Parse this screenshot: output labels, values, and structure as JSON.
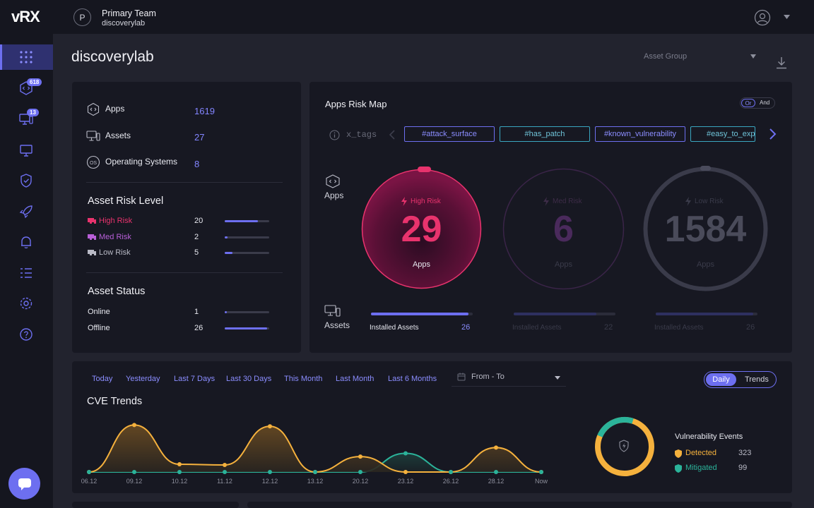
{
  "brand": {
    "logo": "vRX"
  },
  "sidebar": {
    "items": [
      {
        "name": "dashboard",
        "icon": "grid-icon"
      },
      {
        "name": "apps",
        "icon": "apps-icon",
        "badge": "618"
      },
      {
        "name": "assets",
        "icon": "assets-icon",
        "badge": "13"
      },
      {
        "name": "monitor",
        "icon": "monitor-icon"
      },
      {
        "name": "shield",
        "icon": "shield-icon"
      },
      {
        "name": "rocket",
        "icon": "rocket-icon"
      },
      {
        "name": "alerts",
        "icon": "bell-icon"
      },
      {
        "name": "list",
        "icon": "list-icon"
      },
      {
        "name": "settings",
        "icon": "gear-icon"
      },
      {
        "name": "help",
        "icon": "help-icon"
      }
    ]
  },
  "topbar": {
    "avatar_letter": "P",
    "team": "Primary Team",
    "subtitle": "discoverylab"
  },
  "page": {
    "title": "discoverylab",
    "asset_group_placeholder": "Asset Group"
  },
  "summary": {
    "rows": [
      {
        "label": "Apps",
        "value": "1619"
      },
      {
        "label": "Assets",
        "value": "27"
      },
      {
        "label": "Operating Systems",
        "value": "8"
      }
    ]
  },
  "asset_risk": {
    "title": "Asset Risk Level",
    "rows": [
      {
        "label": "High Risk",
        "value": "20",
        "fraction": 0.74,
        "color": "#e8336d"
      },
      {
        "label": "Med Risk",
        "value": "2",
        "fraction": 0.07,
        "color": "#b85fd8"
      },
      {
        "label": "Low Risk",
        "value": "5",
        "fraction": 0.18,
        "color": "#b9bac6"
      }
    ]
  },
  "asset_status": {
    "title": "Asset Status",
    "rows": [
      {
        "label": "Online",
        "value": "1",
        "fraction": 0.04
      },
      {
        "label": "Offline",
        "value": "26",
        "fraction": 0.96
      }
    ]
  },
  "risk_map": {
    "title": "Apps Risk Map",
    "toggle": {
      "or": "Or",
      "and": "And"
    },
    "tags_label": "x_tags",
    "tags": [
      "#attack_surface",
      "#has_patch",
      "#known_vulnerability",
      "#easy_to_exp"
    ],
    "apps_label": "Apps",
    "assets_label": "Assets",
    "circles": [
      {
        "risk": "High Risk",
        "value": "29",
        "sub": "Apps",
        "installed_label": "Installed Assets",
        "installed": "26",
        "fraction": 0.96,
        "color": "#e8336d"
      },
      {
        "risk": "Med Risk",
        "value": "6",
        "sub": "Apps",
        "installed_label": "Installed Assets",
        "installed": "22",
        "fraction": 0.81,
        "color": "#4a2a5c"
      },
      {
        "risk": "Low Risk",
        "value": "1584",
        "sub": "Apps",
        "installed_label": "Installed Assets",
        "installed": "26",
        "fraction": 0.96,
        "color": "#3a3b4a"
      }
    ]
  },
  "cve": {
    "filters": [
      "Today",
      "Yesterday",
      "Last 7 Days",
      "Last 30 Days",
      "This Month",
      "Last Month",
      "Last 6 Months"
    ],
    "date_range": "From - To",
    "toggle": [
      "Daily",
      "Trends"
    ],
    "title": "CVE Trends"
  },
  "vuln_events": {
    "title": "Vulnerability Events",
    "rows": [
      {
        "label": "Detected",
        "value": "323",
        "color": "#f5b13d"
      },
      {
        "label": "Mitigated",
        "value": "99",
        "color": "#2bb39a"
      }
    ]
  },
  "chart_data": {
    "type": "area",
    "x": [
      "06.12",
      "09.12",
      "10.12",
      "11.12",
      "12.12",
      "13.12",
      "20.12",
      "23.12",
      "26.12",
      "28.12",
      "Now"
    ],
    "series": [
      {
        "name": "Detected",
        "values": [
          0,
          73,
          12,
          11,
          71,
          0,
          24,
          0,
          0,
          38,
          0
        ],
        "color": "#f5b13d"
      },
      {
        "name": "Mitigated",
        "values": [
          0,
          0,
          0,
          0,
          0,
          0,
          0,
          29,
          0,
          0,
          0
        ],
        "color": "#2bb39a"
      }
    ]
  }
}
